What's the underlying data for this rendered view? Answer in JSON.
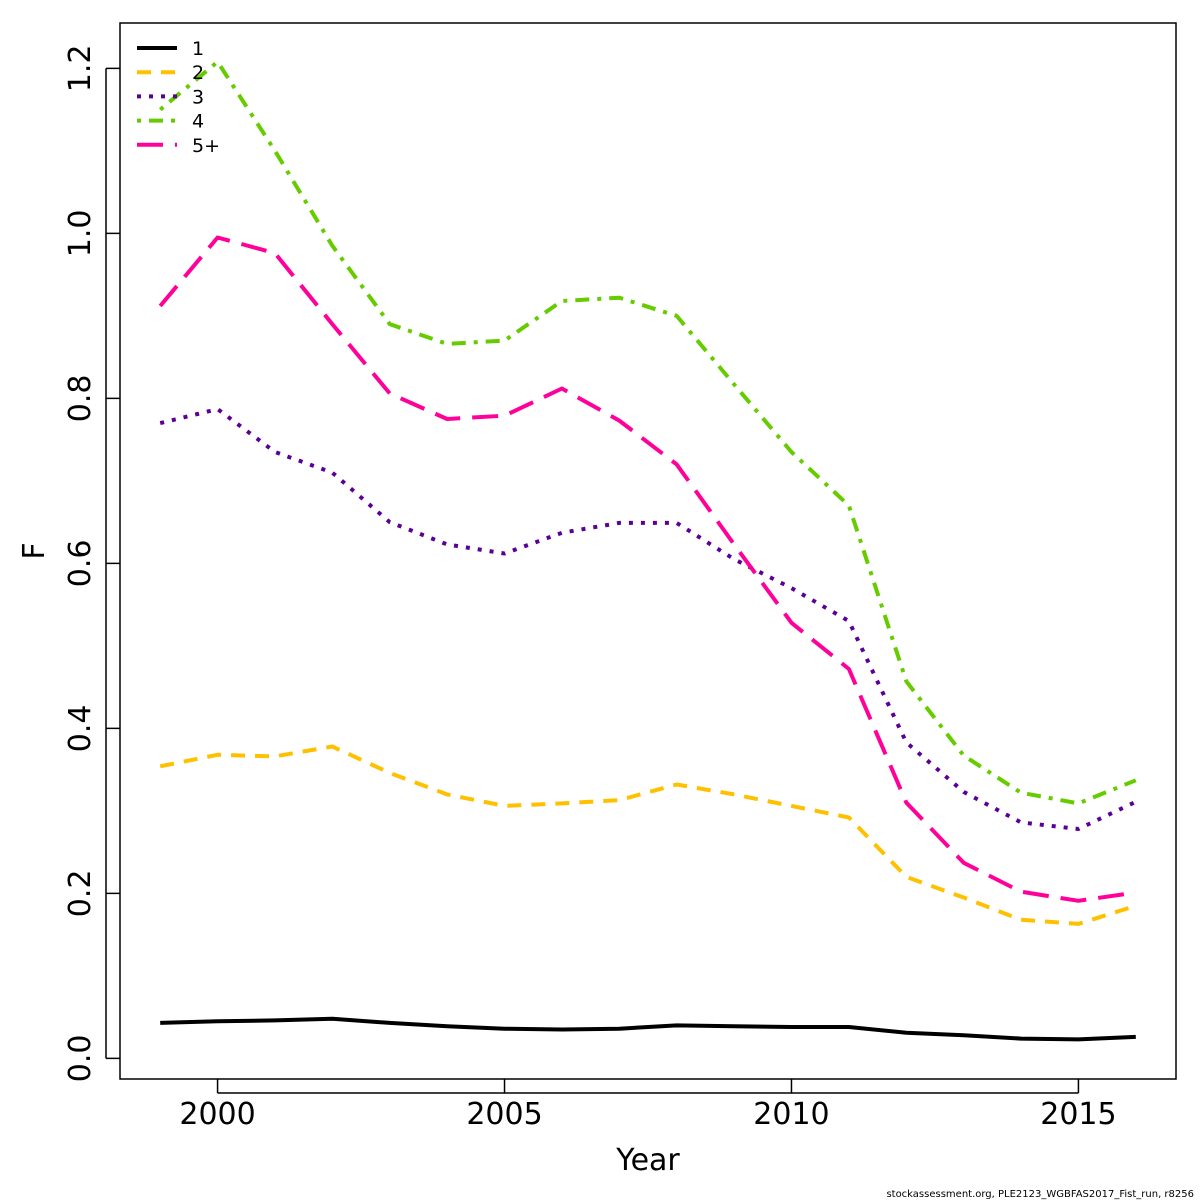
{
  "chart_data": {
    "type": "line",
    "title": "",
    "xlabel": "Year",
    "ylabel": "F",
    "xlim": [
      1998.3,
      2016.7
    ],
    "ylim": [
      -0.025,
      1.255
    ],
    "x_ticks": [
      2000,
      2005,
      2010,
      2015
    ],
    "x_tick_labels": [
      "2000",
      "2005",
      "2010",
      "2015"
    ],
    "y_ticks": [
      0.0,
      0.2,
      0.4,
      0.6,
      0.8,
      1.0,
      1.2
    ],
    "y_tick_labels": [
      "0.0",
      "0.2",
      "0.4",
      "0.6",
      "0.8",
      "1.0",
      "1.2"
    ],
    "grid": false,
    "legend_position": "top-left",
    "x": [
      1999,
      2000,
      2001,
      2002,
      2003,
      2004,
      2005,
      2006,
      2007,
      2008,
      2009,
      2010,
      2011,
      2012,
      2013,
      2014,
      2015,
      2016
    ],
    "series": [
      {
        "name": "1",
        "color": "#000000",
        "dash": "solid",
        "values": [
          0.043,
          0.045,
          0.046,
          0.048,
          0.043,
          0.039,
          0.036,
          0.035,
          0.036,
          0.04,
          0.039,
          0.038,
          0.038,
          0.031,
          0.028,
          0.024,
          0.023,
          0.026
        ]
      },
      {
        "name": "2",
        "color": "#FFC000",
        "dash": "dashed",
        "values": [
          0.354,
          0.368,
          0.366,
          0.378,
          0.346,
          0.32,
          0.306,
          0.309,
          0.313,
          0.332,
          0.32,
          0.306,
          0.292,
          0.22,
          0.195,
          0.168,
          0.163,
          0.185
        ]
      },
      {
        "name": "3",
        "color": "#5B0096",
        "dash": "dotted",
        "values": [
          0.77,
          0.787,
          0.735,
          0.71,
          0.65,
          0.623,
          0.612,
          0.637,
          0.649,
          0.649,
          0.605,
          0.57,
          0.53,
          0.383,
          0.323,
          0.286,
          0.278,
          0.311
        ]
      },
      {
        "name": "4",
        "color": "#66CC00",
        "dash": "dotdash",
        "values": [
          1.15,
          1.208,
          1.1,
          0.985,
          0.89,
          0.866,
          0.87,
          0.918,
          0.922,
          0.9,
          0.817,
          0.735,
          0.67,
          0.457,
          0.367,
          0.322,
          0.309,
          0.337
        ]
      },
      {
        "name": "5+",
        "color": "#FF0099",
        "dash": "longdash",
        "values": [
          0.912,
          0.995,
          0.976,
          0.89,
          0.806,
          0.775,
          0.779,
          0.812,
          0.773,
          0.72,
          0.623,
          0.528,
          0.472,
          0.31,
          0.237,
          0.202,
          0.191,
          0.201
        ]
      }
    ]
  },
  "footer": "stockassessment.org, PLE2123_WGBFAS2017_Fist_run, r8256"
}
